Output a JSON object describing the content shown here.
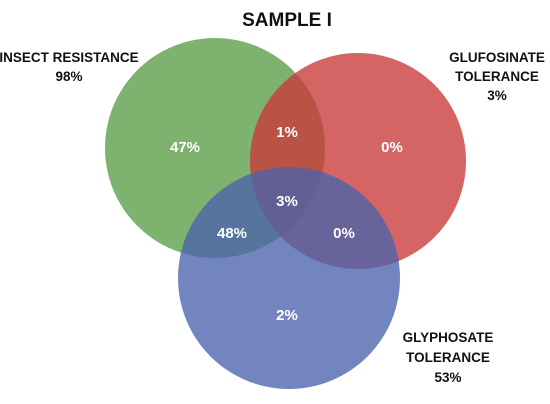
{
  "title": "SAMPLE I",
  "sets": {
    "insect_resistance": {
      "name": "INSECT RESISTANCE",
      "total": "98%",
      "color": "#5a9e47"
    },
    "glufosinate_tolerance": {
      "name_line1": "GLUFOSINATE",
      "name_line2": "TOLERANCE",
      "total": "3%",
      "color": "#c9383a"
    },
    "glyphosate_tolerance": {
      "name_line1": "GLYPHOSATE",
      "name_line2": "TOLERANCE",
      "total": "53%",
      "color": "#4a63ac"
    }
  },
  "regions": {
    "insect_only": "47%",
    "glufosinate_only": "0%",
    "glyphosate_only": "2%",
    "insect_glufosinate": "1%",
    "insect_glyphosate": "48%",
    "glufosinate_glyphosate": "0%",
    "all_three": "3%"
  }
}
